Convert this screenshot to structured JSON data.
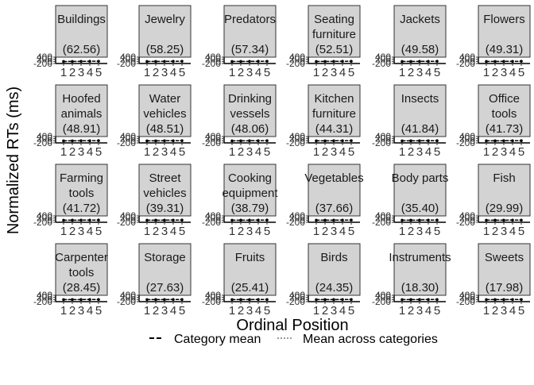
{
  "chart_data": {
    "type": "line",
    "layout": "small-multiples 4x6",
    "xlabel": "Ordinal Position",
    "ylabel": "Normalized RTs (ms)",
    "x": [
      1,
      2,
      3,
      4,
      5
    ],
    "x_tick_labels": [
      "1",
      "2",
      "3",
      "4",
      "5"
    ],
    "y_tick_labels": [
      "-200",
      "0",
      "200",
      "400"
    ],
    "ylim": [
      -200,
      400
    ],
    "grid": false,
    "legend_position": "bottom",
    "legend": [
      {
        "label": "Category mean",
        "style": "dashed",
        "color": "#000000"
      },
      {
        "label": "Mean across categories",
        "style": "dotted",
        "color": "#999999"
      }
    ],
    "panels": [
      {
        "name": "Buildings",
        "lines": [
          "Buildings",
          "",
          "(62.56)"
        ],
        "values": [
          -10,
          -4,
          3,
          10,
          16
        ]
      },
      {
        "name": "Jewelry",
        "lines": [
          "Jewelry",
          "",
          "(58.25)"
        ],
        "values": [
          -9,
          -4,
          2,
          9,
          14
        ]
      },
      {
        "name": "Predators",
        "lines": [
          "Predators",
          "",
          "(57.34)"
        ],
        "values": [
          -9,
          -3,
          2,
          8,
          14
        ]
      },
      {
        "name": "Seating furniture",
        "lines": [
          "Seating",
          "furniture",
          "(52.51)"
        ],
        "values": [
          -8,
          -3,
          2,
          8,
          13
        ]
      },
      {
        "name": "Jackets",
        "lines": [
          "Jackets",
          "",
          "(49.58)"
        ],
        "values": [
          -8,
          -3,
          2,
          7,
          12
        ]
      },
      {
        "name": "Flowers",
        "lines": [
          "Flowers",
          "",
          "(49.31)"
        ],
        "values": [
          -8,
          -3,
          2,
          7,
          12
        ]
      },
      {
        "name": "Hoofed animals",
        "lines": [
          "Hoofed",
          "animals",
          "(48.91)"
        ],
        "values": [
          -8,
          -3,
          2,
          7,
          12
        ]
      },
      {
        "name": "Water vehicles",
        "lines": [
          "Water",
          "vehicles",
          "(48.51)"
        ],
        "values": [
          -8,
          -3,
          2,
          7,
          12
        ]
      },
      {
        "name": "Drinking vessels",
        "lines": [
          "Drinking",
          "vessels",
          "(48.06)"
        ],
        "values": [
          -8,
          -3,
          2,
          7,
          12
        ]
      },
      {
        "name": "Kitchen furniture",
        "lines": [
          "Kitchen",
          "furniture",
          "(44.31)"
        ],
        "values": [
          -7,
          -3,
          2,
          6,
          11
        ]
      },
      {
        "name": "Insects",
        "lines": [
          "Insects",
          "",
          "(41.84)"
        ],
        "values": [
          -7,
          -2,
          2,
          6,
          10
        ]
      },
      {
        "name": "Office tools",
        "lines": [
          "Office",
          "tools",
          "(41.73)"
        ],
        "values": [
          -7,
          -2,
          2,
          6,
          10
        ]
      },
      {
        "name": "Farming tools",
        "lines": [
          "Farming",
          "tools",
          "(41.72)"
        ],
        "values": [
          -7,
          -2,
          2,
          6,
          10
        ]
      },
      {
        "name": "Street vehicles",
        "lines": [
          "Street",
          "vehicles",
          "(39.31)"
        ],
        "values": [
          -6,
          -2,
          1,
          6,
          10
        ]
      },
      {
        "name": "Cooking equipment",
        "lines": [
          "Cooking",
          "equipment",
          "(38.79)"
        ],
        "values": [
          -6,
          -2,
          1,
          6,
          10
        ]
      },
      {
        "name": "Vegetables",
        "lines": [
          "Vegetables",
          "",
          "(37.66)"
        ],
        "values": [
          -6,
          -2,
          1,
          5,
          9
        ]
      },
      {
        "name": "Body parts",
        "lines": [
          "Body parts",
          "",
          "(35.40)"
        ],
        "values": [
          -6,
          -2,
          1,
          5,
          9
        ]
      },
      {
        "name": "Fish",
        "lines": [
          "Fish",
          "",
          "(29.99)"
        ],
        "values": [
          -5,
          -2,
          1,
          4,
          7
        ]
      },
      {
        "name": "Carpenter tools",
        "lines": [
          "Carpenter",
          "tools",
          "(28.45)"
        ],
        "values": [
          -5,
          -2,
          1,
          4,
          7
        ]
      },
      {
        "name": "Storage",
        "lines": [
          "Storage",
          "",
          "(27.63)"
        ],
        "values": [
          -4,
          -2,
          1,
          4,
          7
        ]
      },
      {
        "name": "Fruits",
        "lines": [
          "Fruits",
          "",
          "(25.41)"
        ],
        "values": [
          -4,
          -1,
          1,
          4,
          6
        ]
      },
      {
        "name": "Birds",
        "lines": [
          "Birds",
          "",
          "(24.35)"
        ],
        "values": [
          -4,
          -1,
          1,
          3,
          6
        ]
      },
      {
        "name": "Instruments",
        "lines": [
          "Instruments",
          "",
          "(18.30)"
        ],
        "values": [
          -3,
          -1,
          1,
          3,
          5
        ]
      },
      {
        "name": "Sweets",
        "lines": [
          "Sweets",
          "",
          "(17.98)"
        ],
        "values": [
          -3,
          -1,
          1,
          3,
          5
        ]
      }
    ],
    "mean_across_categories": [
      -7,
      -3,
      1,
      6,
      10
    ]
  }
}
